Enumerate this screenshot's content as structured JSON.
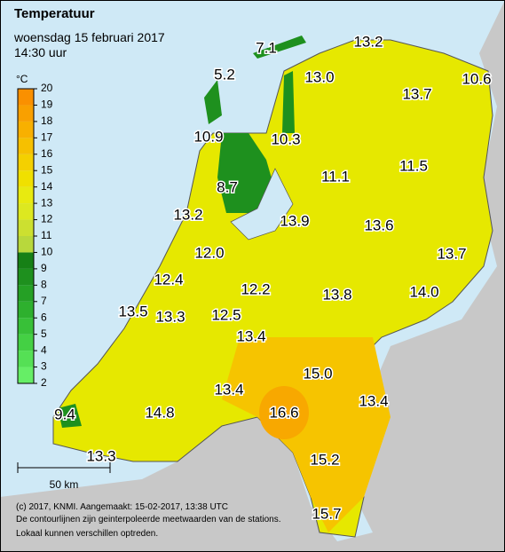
{
  "header": {
    "title": "Temperatuur",
    "date": "woensdag 15 februari 2017",
    "time": "14:30 uur"
  },
  "legend": {
    "unit": "°C",
    "ticks": [
      2,
      3,
      4,
      5,
      6,
      7,
      8,
      9,
      10,
      11,
      12,
      13,
      14,
      15,
      16,
      17,
      18,
      19,
      20
    ],
    "colors": [
      "#66ee66",
      "#55e055",
      "#44d044",
      "#38c038",
      "#2eb02e",
      "#25a025",
      "#1e901e",
      "#168016",
      "#b8d83c",
      "#cce030",
      "#dde820",
      "#e8ea10",
      "#f0e000",
      "#f4d000",
      "#f6c000",
      "#f8b000",
      "#f9a000",
      "#fa9000"
    ]
  },
  "stations": [
    "7.1",
    "13.2",
    "5.2",
    "13.0",
    "13.7",
    "10.6",
    "10.9",
    "10.3",
    "11.1",
    "11.5",
    "8.7",
    "13.2",
    "13.9",
    "13.6",
    "12.0",
    "13.7",
    "12.4",
    "12.2",
    "13.8",
    "14.0",
    "13.5",
    "13.3",
    "12.5",
    "13.4",
    "15.0",
    "13.4",
    "13.4",
    "16.6",
    "9.4",
    "14.8",
    "15.2",
    "13.3",
    "15.7"
  ],
  "scale_bar": "50 km",
  "footer": [
    "(c) 2017, KNMI. Aangemaakt: 15-02-2017, 13:38 UTC",
    "De contourlijnen zijn geinterpoleerde meetwaarden van de stations.",
    "Lokaal kunnen verschillen optreden."
  ]
}
